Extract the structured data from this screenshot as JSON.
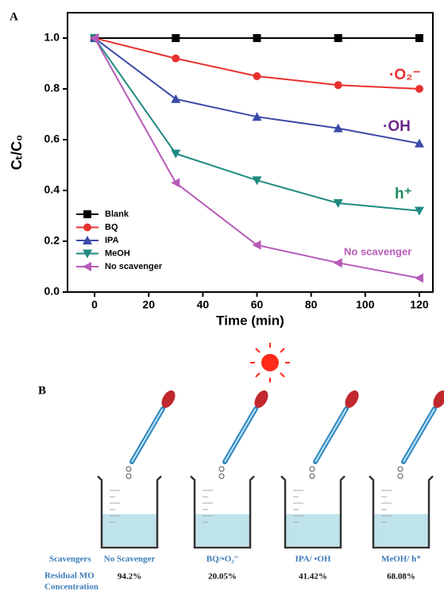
{
  "chart_data": {
    "type": "line",
    "panel_label": "A",
    "x_label": "Time (min)",
    "y_label": "Cₜ/C₀",
    "x": [
      0,
      30,
      60,
      90,
      120
    ],
    "series": [
      {
        "name": "Blank",
        "color": "#000000",
        "marker": "square",
        "values": [
          1,
          1,
          1,
          1,
          1
        ]
      },
      {
        "name": "BQ",
        "color": "#e8312f",
        "marker": "circle",
        "values": [
          1,
          0.92,
          0.85,
          0.815,
          0.8
        ]
      },
      {
        "name": "IPA",
        "color": "#3a4aa8",
        "marker": "triangle-up",
        "values": [
          1,
          0.76,
          0.69,
          0.645,
          0.585
        ]
      },
      {
        "name": "MeOH",
        "color": "#1f8a80",
        "marker": "triangle-down",
        "values": [
          1,
          0.545,
          0.44,
          0.35,
          0.32
        ]
      },
      {
        "name": "No scavenger",
        "color": "#b75ab8",
        "marker": "triangle-left",
        "values": [
          1,
          0.43,
          0.185,
          0.115,
          0.055
        ]
      }
    ],
    "annotations": [
      "·O₂⁻",
      "·OH",
      "h⁺",
      "No scavenger"
    ],
    "xlim": [
      -10,
      125
    ],
    "xticks": [
      0,
      20,
      40,
      60,
      80,
      100,
      120
    ],
    "ylim": [
      0,
      1.1
    ],
    "yticks": [
      {
        "value": 0,
        "label": "0.0"
      },
      0.2,
      0.4,
      0.6,
      0.8,
      {
        "value": 1,
        "label": "1.0"
      }
    ],
    "legend": "lower left"
  },
  "diagram": {
    "panel_label": "B",
    "header": "Scavengers",
    "columns": [
      "No Scavenger",
      "BQ/•O₂⁻",
      "IPA/ •OH",
      "MeOH/ h⁺"
    ],
    "row_label": [
      "Residual MO",
      "Concentration"
    ],
    "values": [
      "94.2%",
      "20.05%",
      "41.42%",
      "68.08%"
    ]
  }
}
